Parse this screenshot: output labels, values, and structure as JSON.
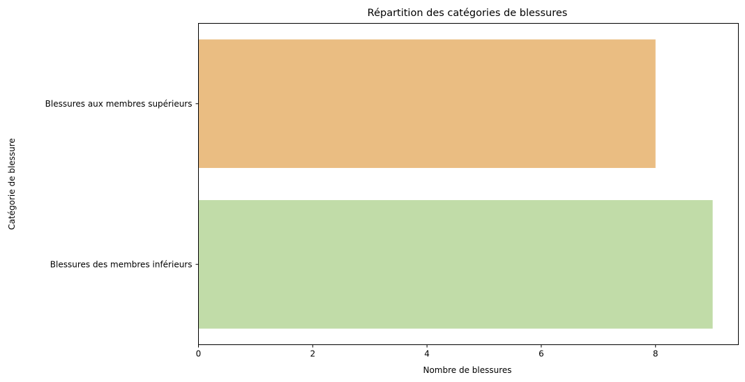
{
  "chart_data": {
    "type": "bar",
    "orientation": "horizontal",
    "title": "Répartition des catégories de blessures",
    "xlabel": "Nombre de blessures",
    "ylabel": "Catégorie de blessure",
    "categories": [
      "Blessures aux membres supérieurs",
      "Blessures des membres inférieurs"
    ],
    "values": [
      8,
      9
    ],
    "colors": [
      "#eabd82",
      "#c1dca8"
    ],
    "xlim": [
      0,
      9.45
    ],
    "xticks": [
      "0",
      "2",
      "4",
      "6",
      "8"
    ],
    "grid": false
  }
}
